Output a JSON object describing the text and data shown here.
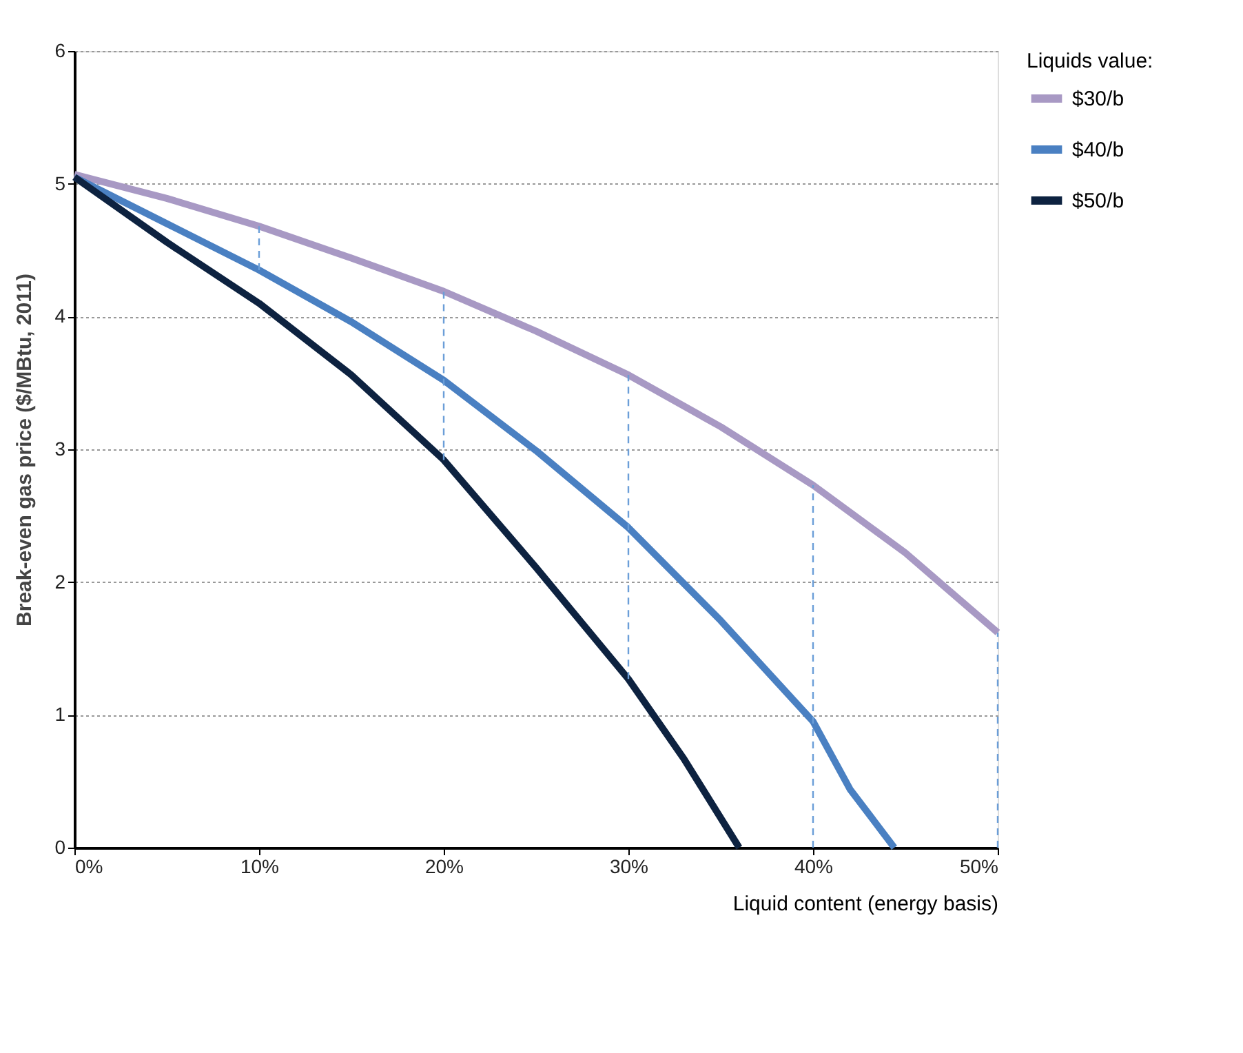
{
  "chart_data": {
    "type": "line",
    "ylabel": "Break-even gas price ($/MBtu, 2011)",
    "xlabel": "Liquid content (energy basis)",
    "legend_title": "Liquids value:",
    "legend": "top right",
    "grid": "y",
    "line_style": "solid",
    "marker": "none",
    "xlim": [
      0,
      50
    ],
    "xticks": [
      {
        "value": 0,
        "label": "0%"
      },
      {
        "value": 10,
        "label": "10%"
      },
      {
        "value": 20,
        "label": "20%"
      },
      {
        "value": 30,
        "label": "30%"
      },
      {
        "value": 40,
        "label": "40%"
      },
      {
        "value": 50,
        "label": "50%"
      }
    ],
    "ylim": [
      0,
      6
    ],
    "yticks": [
      0,
      1,
      2,
      3,
      4,
      5,
      6
    ],
    "series": [
      {
        "name": "$30/b",
        "color": "#a899c4",
        "x": [
          0,
          5,
          10,
          15,
          20,
          25,
          30,
          35,
          40,
          45,
          50
        ],
        "values": [
          5.07,
          4.89,
          4.68,
          4.44,
          4.19,
          3.89,
          3.56,
          3.17,
          2.73,
          2.22,
          1.62
        ]
      },
      {
        "name": "$40/b",
        "color": "#4a80c2",
        "x": [
          0,
          5,
          10,
          15,
          20,
          25,
          30,
          35,
          40,
          42,
          44.4
        ],
        "values": [
          5.05,
          4.7,
          4.35,
          3.96,
          3.52,
          2.99,
          2.41,
          1.71,
          0.95,
          0.44,
          0
        ]
      },
      {
        "name": "$50/b",
        "color": "#0d2240",
        "x": [
          0,
          5,
          10,
          15,
          20,
          25,
          30,
          33,
          36
        ],
        "values": [
          5.05,
          4.56,
          4.1,
          3.56,
          2.92,
          2.11,
          1.27,
          0.67,
          0
        ]
      },
      {
        "type": "line",
        "line_style": "dashed",
        "color": "#6b9ed8",
        "x": [
          10,
          10
        ],
        "values": [
          4.35,
          4.68
        ]
      },
      {
        "type": "line",
        "line_style": "dashed",
        "color": "#6b9ed8",
        "x": [
          20,
          20
        ],
        "values": [
          2.92,
          4.19
        ]
      },
      {
        "type": "line",
        "line_style": "dashed",
        "color": "#6b9ed8",
        "x": [
          30,
          30
        ],
        "values": [
          1.27,
          3.56
        ]
      },
      {
        "type": "line",
        "line_style": "dashed",
        "color": "#6b9ed8",
        "x": [
          40,
          40
        ],
        "values": [
          0,
          2.73
        ]
      },
      {
        "type": "line",
        "line_style": "dashed",
        "color": "#6b9ed8",
        "x": [
          50,
          50
        ],
        "values": [
          0,
          1.62
        ]
      }
    ]
  }
}
